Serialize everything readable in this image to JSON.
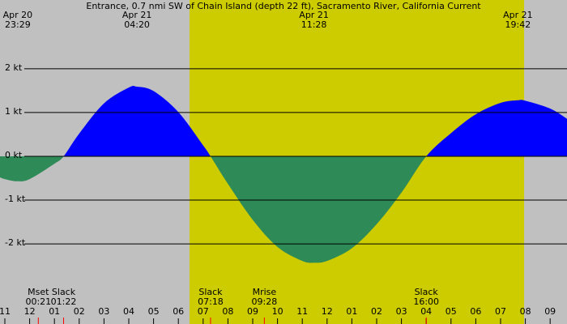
{
  "chart_data": {
    "type": "area",
    "title": "Entrance, 0.7 nmi SW of Chain Island (depth 22 ft), Sacramento River, California Current",
    "background_color": "#c0c0c0",
    "daylight_color": "#cccc00",
    "daylight": [
      7.45,
      20.95
    ],
    "positive_color": "#0000ff",
    "negative_color": "#2e8b57",
    "top_labels": [
      {
        "x": 0.52,
        "date": "Apr 20",
        "time": "23:29"
      },
      {
        "x": 5.33,
        "date": "Apr 21",
        "time": "04:20"
      },
      {
        "x": 12.47,
        "date": "Apr 21",
        "time": "11:28"
      },
      {
        "x": 20.7,
        "date": "Apr 21",
        "time": "19:42"
      }
    ],
    "events": [
      {
        "x": 1.35,
        "label": "Mset",
        "time": "00:21"
      },
      {
        "x": 2.37,
        "label": "Slack",
        "time": "01:22"
      },
      {
        "x": 8.3,
        "label": "Slack",
        "time": "07:18"
      },
      {
        "x": 10.47,
        "label": "Mrise",
        "time": "09:28"
      },
      {
        "x": 17,
        "label": "Slack",
        "time": "16:00"
      }
    ],
    "x": [
      -0.2,
      0,
      0.48,
      1,
      2,
      2.37,
      3,
      4,
      5,
      5.33,
      6,
      7,
      8,
      8.3,
      9,
      10,
      11,
      12,
      12.47,
      13,
      14,
      15,
      16,
      17,
      18,
      19,
      20,
      20.7,
      21,
      22,
      22.7
    ],
    "values": [
      -0.48,
      -0.52,
      -0.57,
      -0.52,
      -0.17,
      0,
      0.52,
      1.21,
      1.57,
      1.59,
      1.49,
      1.01,
      0.25,
      0,
      -0.63,
      -1.45,
      -2.07,
      -2.39,
      -2.43,
      -2.39,
      -2.1,
      -1.55,
      -0.83,
      0,
      0.53,
      0.96,
      1.22,
      1.28,
      1.27,
      1.09,
      0.85
    ],
    "xlim": [
      -0.196,
      22.68
    ],
    "ylim": [
      -3.83,
      3.57
    ],
    "yticks": [
      {
        "value": 2,
        "label": "2 kt"
      },
      {
        "value": 1,
        "label": "1 kt"
      },
      {
        "value": 0,
        "label": "0 kt"
      },
      {
        "value": -1,
        "label": "-1 kt"
      },
      {
        "value": -2,
        "label": "-2 kt"
      }
    ],
    "xticks": [
      {
        "value": 0,
        "label": "11"
      },
      {
        "value": 1,
        "label": "12"
      },
      {
        "value": 2,
        "label": "01"
      },
      {
        "value": 3,
        "label": "02"
      },
      {
        "value": 4,
        "label": "03"
      },
      {
        "value": 5,
        "label": "04"
      },
      {
        "value": 6,
        "label": "05"
      },
      {
        "value": 7,
        "label": "06"
      },
      {
        "value": 8,
        "label": "07"
      },
      {
        "value": 9,
        "label": "08"
      },
      {
        "value": 10,
        "label": "09"
      },
      {
        "value": 11,
        "label": "10"
      },
      {
        "value": 12,
        "label": "11"
      },
      {
        "value": 13,
        "label": "12"
      },
      {
        "value": 14,
        "label": "01"
      },
      {
        "value": 15,
        "label": "02"
      },
      {
        "value": 16,
        "label": "03"
      },
      {
        "value": 17,
        "label": "04"
      },
      {
        "value": 18,
        "label": "05"
      },
      {
        "value": 19,
        "label": "06"
      },
      {
        "value": 20,
        "label": "07"
      },
      {
        "value": 21,
        "label": "08"
      },
      {
        "value": 22,
        "label": "09"
      }
    ]
  }
}
